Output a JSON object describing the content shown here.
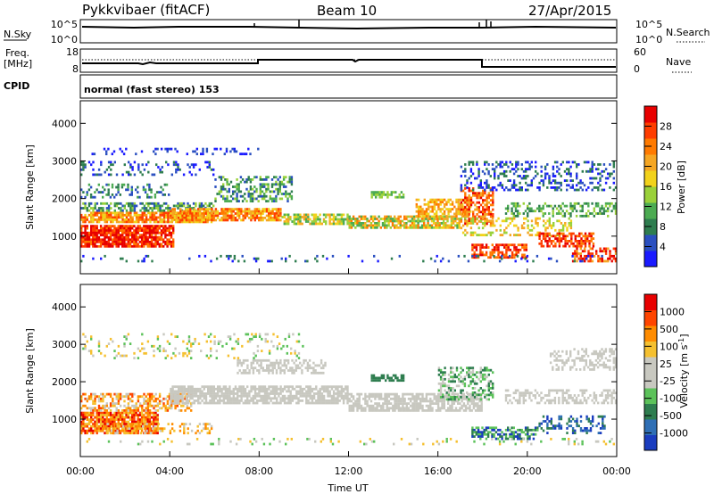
{
  "header": {
    "station": "Pykkvibaer (fitACF)",
    "beam": "Beam 10",
    "date": "27/Apr/2015"
  },
  "strip_sky": {
    "left_label": "N.Sky",
    "left_ticks": [
      "10^5",
      "10^0"
    ],
    "right_label": "N.Search",
    "right_ticks": [
      "10^5",
      "10^0"
    ]
  },
  "strip_freq": {
    "left_label_1": "Freq.",
    "left_label_2": "[MHz]",
    "left_ticks": [
      "18",
      "8"
    ],
    "right_label": "Nave",
    "right_ticks": [
      "60",
      "0"
    ]
  },
  "strip_cpid": {
    "label": "CPID",
    "text": "normal (fast stereo) 153"
  },
  "colors": {
    "power_scale": [
      "#1a1aff",
      "#2a4fc0",
      "#2e7d4f",
      "#4cab52",
      "#9ad13a",
      "#f2d21b",
      "#f5a623",
      "#ff7a00",
      "#ff3d00",
      "#e80000"
    ],
    "velocity_scale": [
      "#1a3dbf",
      "#2f6fb5",
      "#2e7d4f",
      "#5cc25a",
      "#c8c8c0",
      "#c8c8c0",
      "#f5c030",
      "#ff8c00",
      "#ff4500",
      "#e80000"
    ]
  },
  "chart_data": [
    {
      "type": "heatmap",
      "title": "",
      "xlabel": "",
      "ylabel": "Slant Range [km]",
      "xlim": [
        "00:00",
        "24:00"
      ],
      "ylim": [
        0,
        4600
      ],
      "yticks": [
        "1000",
        "2000",
        "3000",
        "4000"
      ],
      "colorbar": {
        "label": "Power [dB]",
        "ticks": [
          "4",
          "8",
          "12",
          "16",
          "20",
          "24",
          "28"
        ],
        "range": [
          0,
          30
        ]
      }
    },
    {
      "type": "heatmap",
      "title": "",
      "xlabel": "Time UT",
      "ylabel": "Slant Range [km]",
      "xlim": [
        "00:00",
        "24:00"
      ],
      "xticks": [
        "00:00",
        "04:00",
        "08:00",
        "12:00",
        "16:00",
        "20:00",
        "00:00"
      ],
      "ylim": [
        0,
        4600
      ],
      "yticks": [
        "1000",
        "2000",
        "3000",
        "4000"
      ],
      "colorbar": {
        "label": "Velocity [m s",
        "label_sup": "-1",
        "label_end": "]",
        "ticks": [
          "1000",
          "500",
          "100",
          "25",
          "-25",
          "-100",
          "-500",
          "-1000"
        ]
      }
    }
  ]
}
